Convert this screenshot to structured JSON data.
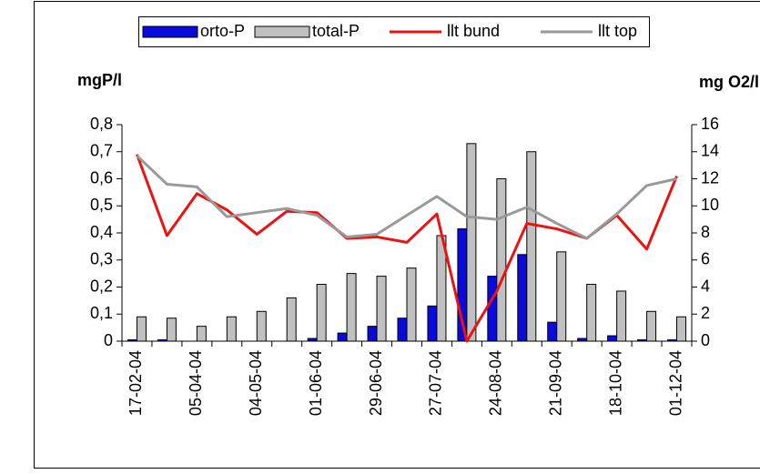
{
  "chart_data": {
    "type": "bar",
    "y_label": "mgP/l",
    "y2_label": "mg O2/l",
    "legend": "top",
    "categories": [
      "17-02-04",
      null,
      "05-04-04",
      null,
      "04-05-04",
      null,
      "01-06-04",
      null,
      "29-06-04",
      null,
      "27-07-04",
      null,
      "24-08-04",
      null,
      "21-09-04",
      null,
      "18-10-04",
      null,
      "01-12-04"
    ],
    "series": [
      {
        "name": "orto-P",
        "type": "bar",
        "color": "#0a0adc",
        "values": [
          0.005,
          0.005,
          0,
          0,
          0,
          0,
          0.01,
          0.03,
          0.055,
          0.085,
          0.13,
          0.415,
          0.24,
          0.32,
          0.07,
          0.01,
          0.02,
          0.005,
          0.005
        ]
      },
      {
        "name": "total-P",
        "type": "bar",
        "color": "#c0c0c0",
        "values": [
          0.09,
          0.085,
          0.055,
          0.09,
          0.11,
          0.16,
          0.21,
          0.25,
          0.24,
          0.27,
          0.39,
          0.73,
          0.6,
          0.7,
          0.33,
          0.21,
          0.185,
          0.11,
          0.09
        ]
      },
      {
        "name": "llt bund",
        "type": "line",
        "axis": "y2",
        "color": "#ee1111",
        "values": [
          13.8,
          7.8,
          10.9,
          9.7,
          7.9,
          9.6,
          9.5,
          7.6,
          7.7,
          7.3,
          9.4,
          0,
          3.7,
          8.7,
          8.3,
          7.6,
          9.3,
          6.8,
          12.2
        ]
      },
      {
        "name": "llt top",
        "type": "line",
        "axis": "y2",
        "color": "#999999",
        "values": [
          13.7,
          11.6,
          11.4,
          9.2,
          9.5,
          9.8,
          9.3,
          7.7,
          7.9,
          9.3,
          10.7,
          9.2,
          9.0,
          9.9,
          8.7,
          7.6,
          9.4,
          11.5,
          12.0
        ]
      }
    ],
    "ylim": [
      0,
      0.8
    ],
    "yticks": [
      0,
      {
        "value": 0.1,
        "label": "0,1"
      },
      {
        "value": 0.2,
        "label": "0,2"
      },
      {
        "value": 0.3,
        "label": "0,3"
      },
      {
        "value": 0.4,
        "label": "0,4"
      },
      {
        "value": 0.5,
        "label": "0,5"
      },
      {
        "value": 0.6,
        "label": "0,6"
      },
      {
        "value": 0.7,
        "label": "0,7"
      },
      {
        "value": 0.8,
        "label": "0,8"
      }
    ],
    "y2lim": [
      0,
      16
    ],
    "y2ticks": [
      0,
      2,
      4,
      6,
      8,
      10,
      12,
      14,
      16
    ]
  }
}
